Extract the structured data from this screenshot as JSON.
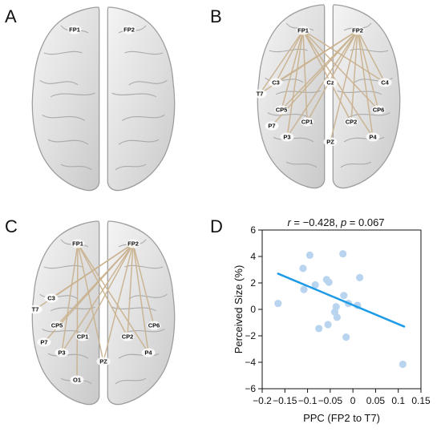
{
  "panels": {
    "a": {
      "label": "A",
      "electrodes": [
        "FP1",
        "FP2"
      ]
    },
    "b": {
      "label": "B",
      "electrodes": [
        "FP1",
        "FP2",
        "C3",
        "T7",
        "Cz",
        "C4",
        "CP5",
        "CP6",
        "CP1",
        "CP2",
        "P7",
        "P3",
        "PZ",
        "P4"
      ],
      "connections": [
        [
          "FP1",
          "C3"
        ],
        [
          "FP1",
          "T7"
        ],
        [
          "FP1",
          "CP5"
        ],
        [
          "FP1",
          "CP1"
        ],
        [
          "FP1",
          "CP2"
        ],
        [
          "FP1",
          "CP6"
        ],
        [
          "FP1",
          "C4"
        ],
        [
          "FP1",
          "P3"
        ],
        [
          "FP1",
          "P4"
        ],
        [
          "FP2",
          "T7"
        ],
        [
          "FP2",
          "C3"
        ],
        [
          "FP2",
          "CP5"
        ],
        [
          "FP2",
          "P7"
        ],
        [
          "FP2",
          "P3"
        ],
        [
          "FP2",
          "CP1"
        ],
        [
          "FP2",
          "PZ"
        ],
        [
          "FP2",
          "CP2"
        ],
        [
          "FP2",
          "CP6"
        ],
        [
          "FP2",
          "C4"
        ],
        [
          "FP2",
          "P4"
        ]
      ]
    },
    "c": {
      "label": "C",
      "electrodes": [
        "FP1",
        "FP2",
        "C3",
        "T7",
        "CP5",
        "CP6",
        "CP1",
        "CP2",
        "P7",
        "P3",
        "PZ",
        "P4",
        "O1"
      ],
      "connections": [
        [
          "FP1",
          "P3"
        ],
        [
          "FP1",
          "PZ"
        ],
        [
          "FP1",
          "CP2"
        ],
        [
          "FP1",
          "P4"
        ],
        [
          "FP1",
          "O1"
        ],
        [
          "FP2",
          "C3"
        ],
        [
          "FP2",
          "T7"
        ],
        [
          "FP2",
          "CP5"
        ],
        [
          "FP2",
          "P7"
        ],
        [
          "FP2",
          "P3"
        ],
        [
          "FP2",
          "CP1"
        ],
        [
          "FP2",
          "PZ"
        ],
        [
          "FP2",
          "CP2"
        ],
        [
          "FP2",
          "CP6"
        ],
        [
          "FP2",
          "P4"
        ]
      ]
    },
    "d": {
      "label": "D"
    }
  },
  "chart_data": {
    "type": "scatter",
    "title_r": "r",
    "title_rest": " = −0.428, ",
    "title_p": "p",
    "title_pval": " = 0.067",
    "xlabel": "PPC (FP2 to T7)",
    "ylabel": "Perceived Size (%)",
    "xlim": [
      -0.2,
      0.15
    ],
    "ylim": [
      -6,
      6
    ],
    "xticks": [
      -0.2,
      -0.15,
      -0.1,
      -0.05,
      0,
      0.05,
      0.1,
      0.15
    ],
    "xtick_labels": [
      "−0.2",
      "−0.15",
      "−0.1",
      "−0.05",
      "0",
      "0.05",
      "0.1",
      "0.15"
    ],
    "yticks": [
      -6,
      -4,
      -2,
      0,
      2,
      4,
      6
    ],
    "ytick_labels": [
      "−6",
      "−4",
      "−2",
      "0",
      "2",
      "4",
      "6"
    ],
    "points": [
      [
        -0.165,
        0.45
      ],
      [
        -0.11,
        3.1
      ],
      [
        -0.108,
        1.5
      ],
      [
        -0.095,
        4.1
      ],
      [
        -0.083,
        1.85
      ],
      [
        -0.075,
        -1.45
      ],
      [
        -0.058,
        2.25
      ],
      [
        -0.053,
        2.05
      ],
      [
        -0.055,
        -1.15
      ],
      [
        -0.04,
        -0.2
      ],
      [
        -0.037,
        0.2
      ],
      [
        -0.035,
        -0.6
      ],
      [
        -0.022,
        4.2
      ],
      [
        -0.02,
        1.05
      ],
      [
        -0.015,
        -2.1
      ],
      [
        -0.01,
        0.45
      ],
      [
        0.01,
        0.3
      ],
      [
        0.015,
        2.4
      ],
      [
        0.11,
        -4.15
      ]
    ],
    "fit": {
      "x": [
        -0.165,
        0.113
      ],
      "y": [
        2.7,
        -1.3
      ]
    },
    "colors": {
      "points": "#b9d4ef",
      "fit": "#1e9be6"
    }
  }
}
